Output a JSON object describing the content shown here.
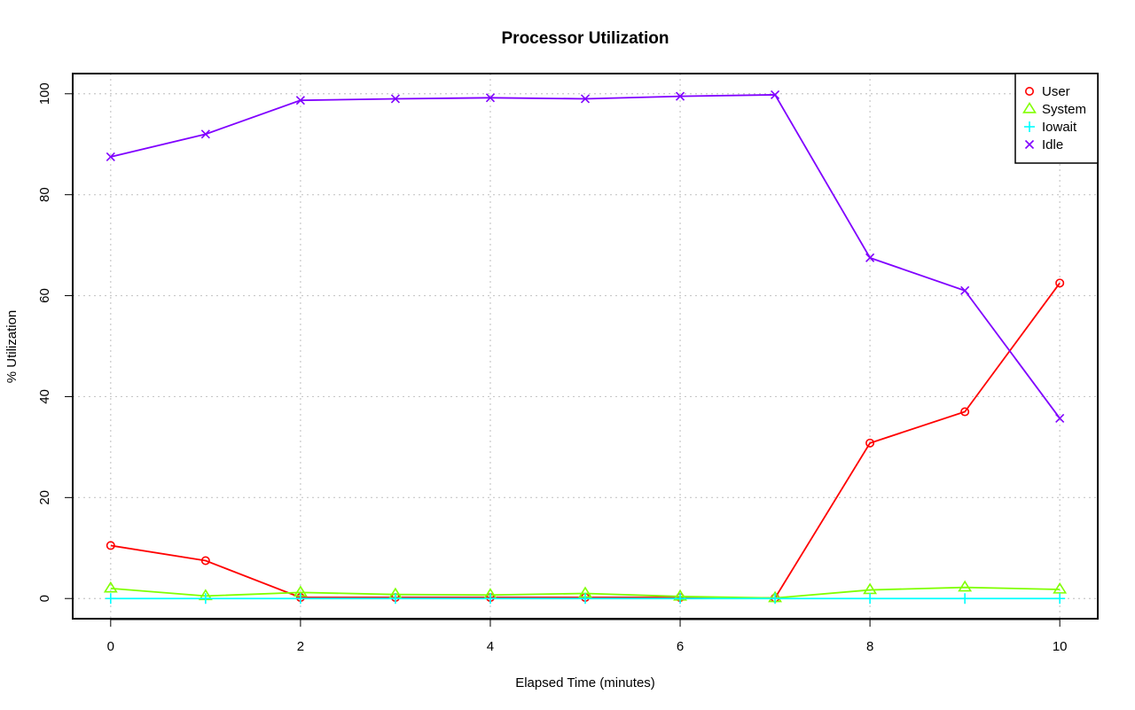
{
  "chart_data": {
    "type": "line",
    "title": "Processor Utilization",
    "xlabel": "Elapsed Time (minutes)",
    "ylabel": "% Utilization",
    "xlim": [
      -0.4,
      10.4
    ],
    "ylim": [
      -4,
      104
    ],
    "x_ticks": [
      0,
      2,
      4,
      6,
      8,
      10
    ],
    "y_ticks": [
      0,
      20,
      40,
      60,
      80,
      100
    ],
    "grid": true,
    "legend_position": "top-right",
    "x": [
      0,
      1,
      2,
      3,
      4,
      5,
      6,
      7,
      8,
      9,
      10
    ],
    "series": [
      {
        "name": "User",
        "color": "#ff0000",
        "marker": "circle",
        "values": [
          10.5,
          7.5,
          0.2,
          0.2,
          0.2,
          0.2,
          0.2,
          0.1,
          30.8,
          37.0,
          62.5
        ]
      },
      {
        "name": "System",
        "color": "#80ff00",
        "marker": "triangle",
        "values": [
          2.0,
          0.5,
          1.2,
          0.8,
          0.7,
          1.0,
          0.4,
          0.1,
          1.7,
          2.2,
          1.8
        ]
      },
      {
        "name": "Iowait",
        "color": "#00ffff",
        "marker": "plus",
        "values": [
          0,
          0,
          0,
          0,
          0,
          0,
          0,
          0,
          0,
          0,
          0
        ]
      },
      {
        "name": "Idle",
        "color": "#8000ff",
        "marker": "cross",
        "values": [
          87.5,
          92.0,
          98.7,
          99.0,
          99.2,
          99.0,
          99.5,
          99.8,
          67.5,
          61.0,
          35.7
        ]
      }
    ]
  }
}
